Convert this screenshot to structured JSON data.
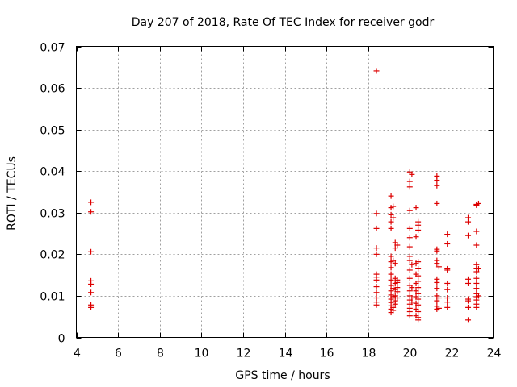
{
  "chart_data": {
    "type": "scatter",
    "title": "Day 207 of 2018, Rate Of TEC Index for receiver godr",
    "xlabel": "GPS time / hours",
    "ylabel": "ROTI / TECUs",
    "xlim": [
      4,
      24
    ],
    "ylim": [
      0,
      0.07
    ],
    "x_ticks": [
      4,
      6,
      8,
      10,
      12,
      14,
      16,
      18,
      20,
      22,
      24
    ],
    "x_tick_labels": [
      "4",
      "6",
      "8",
      "10",
      "12",
      "14",
      "16",
      "18",
      "20",
      "22",
      "24"
    ],
    "y_ticks": [
      0,
      0.01,
      0.02,
      0.03,
      0.04,
      0.05,
      0.06,
      0.07
    ],
    "y_tick_labels": [
      "0",
      "0.01",
      "0.02",
      "0.03",
      "0.04",
      "0.05",
      "0.06",
      "0.07"
    ],
    "grid": true,
    "marker": "plus",
    "color": "#dd0000",
    "series": [
      {
        "name": "ROTI",
        "points": [
          [
            4.7,
            0.0325
          ],
          [
            4.7,
            0.0302
          ],
          [
            4.7,
            0.0206
          ],
          [
            4.7,
            0.0136
          ],
          [
            4.7,
            0.0128
          ],
          [
            4.7,
            0.0108
          ],
          [
            4.7,
            0.0078
          ],
          [
            4.7,
            0.0072
          ],
          [
            18.4,
            0.0641
          ],
          [
            18.4,
            0.0298
          ],
          [
            18.4,
            0.0262
          ],
          [
            18.4,
            0.0215
          ],
          [
            18.4,
            0.02
          ],
          [
            18.4,
            0.0152
          ],
          [
            18.4,
            0.0145
          ],
          [
            18.4,
            0.0138
          ],
          [
            18.4,
            0.0122
          ],
          [
            18.4,
            0.0108
          ],
          [
            18.4,
            0.0095
          ],
          [
            18.4,
            0.0085
          ],
          [
            18.4,
            0.0078
          ],
          [
            19.1,
            0.034
          ],
          [
            19.1,
            0.0312
          ],
          [
            19.1,
            0.0295
          ],
          [
            19.1,
            0.0278
          ],
          [
            19.1,
            0.0262
          ],
          [
            19.1,
            0.0195
          ],
          [
            19.1,
            0.0182
          ],
          [
            19.1,
            0.0168
          ],
          [
            19.1,
            0.0152
          ],
          [
            19.1,
            0.0138
          ],
          [
            19.1,
            0.0125
          ],
          [
            19.1,
            0.0112
          ],
          [
            19.1,
            0.0102
          ],
          [
            19.1,
            0.0092
          ],
          [
            19.1,
            0.0084
          ],
          [
            19.1,
            0.0076
          ],
          [
            19.1,
            0.0068
          ],
          [
            19.1,
            0.006
          ],
          [
            19.2,
            0.0315
          ],
          [
            19.2,
            0.0288
          ],
          [
            19.2,
            0.0185
          ],
          [
            19.2,
            0.0118
          ],
          [
            19.2,
            0.0098
          ],
          [
            19.2,
            0.0072
          ],
          [
            19.2,
            0.0065
          ],
          [
            19.3,
            0.0228
          ],
          [
            19.3,
            0.0215
          ],
          [
            19.3,
            0.0178
          ],
          [
            19.3,
            0.0142
          ],
          [
            19.3,
            0.013
          ],
          [
            19.3,
            0.0115
          ],
          [
            19.3,
            0.01
          ],
          [
            19.3,
            0.0088
          ],
          [
            19.3,
            0.008
          ],
          [
            19.4,
            0.0222
          ],
          [
            19.4,
            0.0138
          ],
          [
            19.4,
            0.0132
          ],
          [
            19.4,
            0.012
          ],
          [
            19.4,
            0.011
          ],
          [
            19.4,
            0.0095
          ],
          [
            20.0,
            0.0398
          ],
          [
            20.0,
            0.0375
          ],
          [
            20.0,
            0.0362
          ],
          [
            20.0,
            0.0305
          ],
          [
            20.0,
            0.0262
          ],
          [
            20.0,
            0.024
          ],
          [
            20.0,
            0.0218
          ],
          [
            20.0,
            0.0195
          ],
          [
            20.0,
            0.0185
          ],
          [
            20.0,
            0.0162
          ],
          [
            20.0,
            0.0142
          ],
          [
            20.0,
            0.0125
          ],
          [
            20.0,
            0.0112
          ],
          [
            20.0,
            0.01
          ],
          [
            20.0,
            0.009
          ],
          [
            20.0,
            0.008
          ],
          [
            20.0,
            0.007
          ],
          [
            20.0,
            0.0062
          ],
          [
            20.0,
            0.0052
          ],
          [
            20.1,
            0.0392
          ],
          [
            20.1,
            0.0175
          ],
          [
            20.1,
            0.012
          ],
          [
            20.1,
            0.0095
          ],
          [
            20.1,
            0.0085
          ],
          [
            20.3,
            0.0312
          ],
          [
            20.3,
            0.0242
          ],
          [
            20.3,
            0.0178
          ],
          [
            20.3,
            0.0152
          ],
          [
            20.3,
            0.013
          ],
          [
            20.3,
            0.0112
          ],
          [
            20.3,
            0.0098
          ],
          [
            20.3,
            0.0082
          ],
          [
            20.3,
            0.0068
          ],
          [
            20.3,
            0.0052
          ],
          [
            20.4,
            0.0278
          ],
          [
            20.4,
            0.027
          ],
          [
            20.4,
            0.0258
          ],
          [
            20.4,
            0.0182
          ],
          [
            20.4,
            0.0165
          ],
          [
            20.4,
            0.0148
          ],
          [
            20.4,
            0.0135
          ],
          [
            20.4,
            0.012
          ],
          [
            20.4,
            0.0105
          ],
          [
            20.4,
            0.0092
          ],
          [
            20.4,
            0.0078
          ],
          [
            20.4,
            0.0062
          ],
          [
            20.4,
            0.0048
          ],
          [
            20.4,
            0.0042
          ],
          [
            21.3,
            0.0388
          ],
          [
            21.3,
            0.0378
          ],
          [
            21.3,
            0.0365
          ],
          [
            21.3,
            0.0322
          ],
          [
            21.3,
            0.0212
          ],
          [
            21.3,
            0.0208
          ],
          [
            21.3,
            0.0185
          ],
          [
            21.3,
            0.0178
          ],
          [
            21.3,
            0.014
          ],
          [
            21.3,
            0.0132
          ],
          [
            21.3,
            0.0118
          ],
          [
            21.3,
            0.01
          ],
          [
            21.3,
            0.0088
          ],
          [
            21.3,
            0.0075
          ],
          [
            21.3,
            0.0068
          ],
          [
            21.4,
            0.017
          ],
          [
            21.4,
            0.0095
          ],
          [
            21.4,
            0.007
          ],
          [
            21.8,
            0.0248
          ],
          [
            21.8,
            0.0225
          ],
          [
            21.8,
            0.0165
          ],
          [
            21.8,
            0.0162
          ],
          [
            21.8,
            0.013
          ],
          [
            21.8,
            0.0115
          ],
          [
            21.8,
            0.0095
          ],
          [
            21.8,
            0.0085
          ],
          [
            21.8,
            0.0072
          ],
          [
            22.8,
            0.0288
          ],
          [
            22.8,
            0.0278
          ],
          [
            22.8,
            0.0245
          ],
          [
            22.8,
            0.014
          ],
          [
            22.8,
            0.013
          ],
          [
            22.8,
            0.0092
          ],
          [
            22.8,
            0.0088
          ],
          [
            22.8,
            0.0072
          ],
          [
            22.8,
            0.0042
          ],
          [
            23.2,
            0.032
          ],
          [
            23.2,
            0.0318
          ],
          [
            23.2,
            0.0255
          ],
          [
            23.2,
            0.0222
          ],
          [
            23.2,
            0.0175
          ],
          [
            23.2,
            0.0165
          ],
          [
            23.2,
            0.0158
          ],
          [
            23.2,
            0.0142
          ],
          [
            23.2,
            0.013
          ],
          [
            23.2,
            0.0118
          ],
          [
            23.2,
            0.0105
          ],
          [
            23.2,
            0.0098
          ],
          [
            23.2,
            0.009
          ],
          [
            23.2,
            0.008
          ],
          [
            23.2,
            0.0072
          ],
          [
            23.3,
            0.0322
          ],
          [
            23.3,
            0.0165
          ],
          [
            23.3,
            0.01
          ]
        ]
      }
    ]
  }
}
